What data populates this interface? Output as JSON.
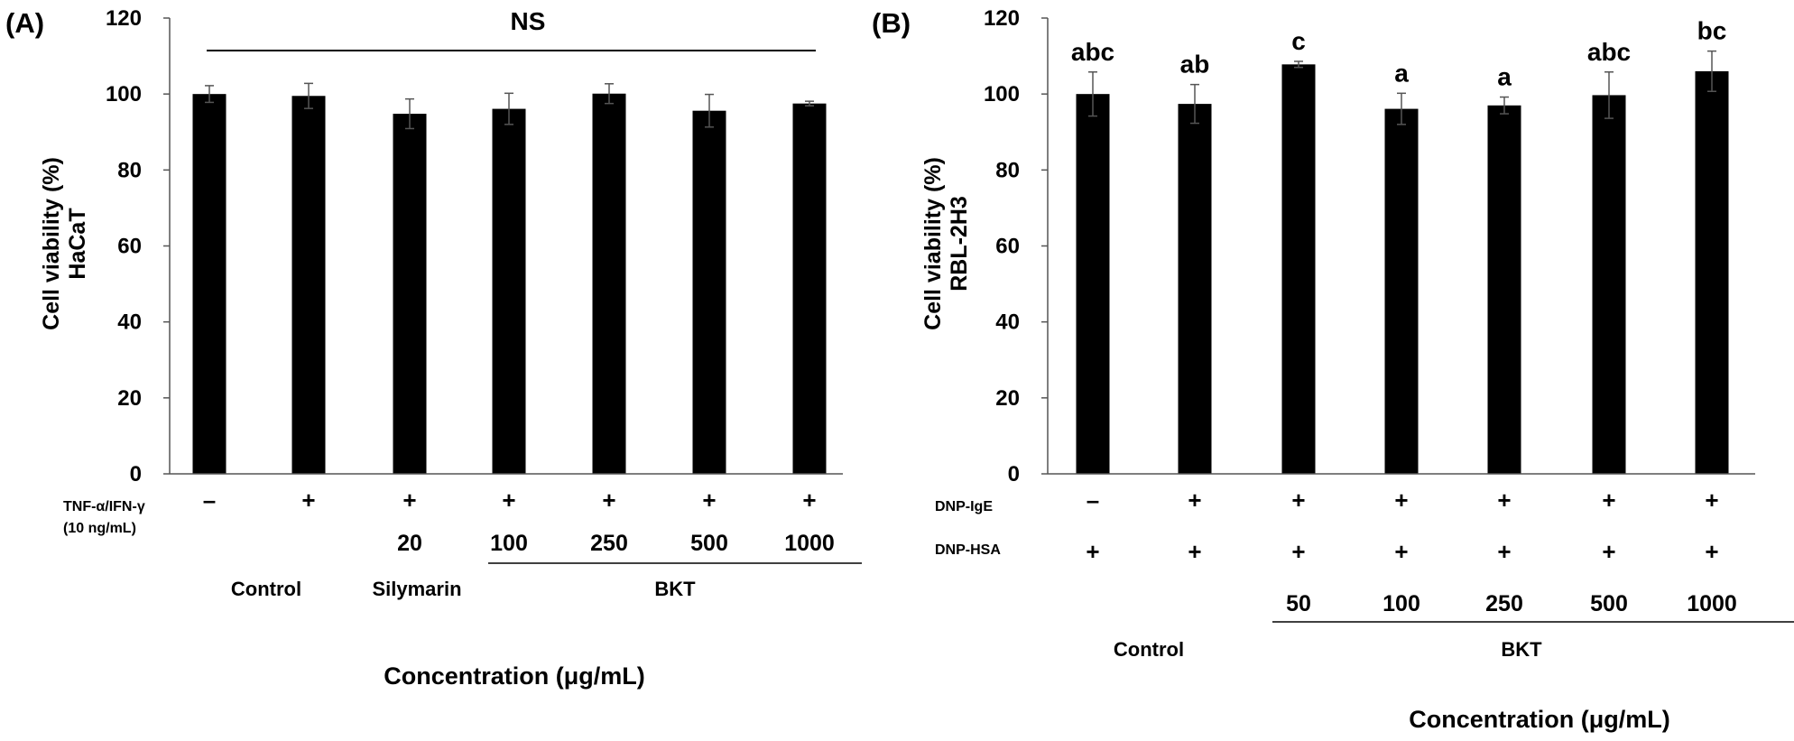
{
  "chart_data": [
    {
      "type": "bar",
      "panel": "(A)",
      "ylabel_line1": "Cell viability (%)",
      "ylabel_line2": "HaCaT",
      "ylim": [
        0,
        120
      ],
      "yticks": [
        "0",
        "20",
        "40",
        "60",
        "80",
        "100",
        "120"
      ],
      "values": [
        100,
        99.5,
        94.8,
        96.1,
        100.1,
        95.6,
        97.5
      ],
      "errors": [
        2.2,
        3.3,
        3.9,
        4.1,
        2.6,
        4.3,
        0.6
      ],
      "significance": "NS",
      "rows": [
        {
          "label_line1": "TNF-α/IFN-γ",
          "label_line2": "(10 ng/mL)",
          "signs": [
            "–",
            "+",
            "+",
            "+",
            "+",
            "+",
            "+"
          ]
        }
      ],
      "concentrations": [
        "",
        "",
        "20",
        "100",
        "250",
        "500",
        "1000"
      ],
      "groups": [
        {
          "label": "Control"
        },
        {
          "label": "Silymarin"
        },
        {
          "label": "BKT"
        }
      ],
      "xlabel": "Concentration (μg/mL)"
    },
    {
      "type": "bar",
      "panel": "(B)",
      "ylabel_line1": "Cell viability (%)",
      "ylabel_line2": "RBL-2H3",
      "ylim": [
        0,
        120
      ],
      "yticks": [
        "0",
        "20",
        "40",
        "60",
        "80",
        "100",
        "120"
      ],
      "values": [
        100,
        97.4,
        107.8,
        96.1,
        97.0,
        99.7,
        106.0
      ],
      "errors": [
        5.8,
        5.1,
        0.8,
        4.1,
        2.2,
        6.1,
        5.3
      ],
      "letters": [
        "abc",
        "ab",
        "c",
        "a",
        "a",
        "abc",
        "bc"
      ],
      "rows": [
        {
          "label_line1": "DNP-IgE",
          "signs": [
            "–",
            "+",
            "+",
            "+",
            "+",
            "+",
            "+"
          ]
        },
        {
          "label_line1": "DNP-HSA",
          "signs": [
            "+",
            "+",
            "+",
            "+",
            "+",
            "+",
            "+"
          ]
        }
      ],
      "concentrations": [
        "",
        "",
        "50",
        "100",
        "250",
        "500",
        "1000"
      ],
      "groups": [
        {
          "label": "Control"
        },
        {
          "label": "BKT"
        }
      ],
      "xlabel": "Concentration (μg/mL)"
    }
  ]
}
